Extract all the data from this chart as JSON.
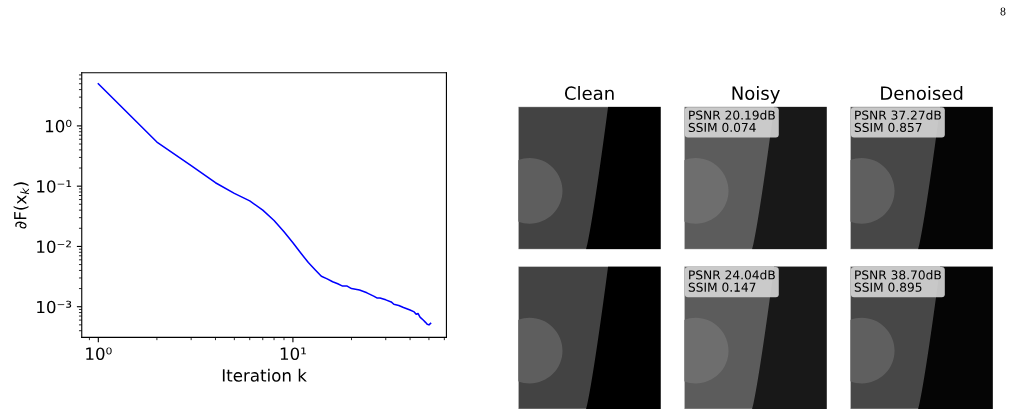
{
  "chart_data": [
    {
      "type": "line",
      "xlabel": "Iteration k",
      "ylabel": "∂F(x$_{k}$)",
      "log": "xy",
      "xlim": [
        0.822,
        61.5
      ],
      "ylim": [
        0.00031,
        7.6
      ],
      "xticks": [
        {
          "value": 1,
          "label": "10⁰"
        },
        {
          "value": 10,
          "label": "10¹"
        }
      ],
      "yticks": [
        {
          "value": 0.001,
          "label": "10⁻³"
        },
        {
          "value": 0.01,
          "label": "10⁻²"
        },
        {
          "value": 0.1,
          "label": "10⁻¹"
        },
        {
          "value": 1,
          "label": "10⁰"
        }
      ],
      "annotations": [
        "8"
      ],
      "series": [
        {
          "color": "#0000ff",
          "x": [
            1,
            2,
            3,
            4,
            5,
            6,
            7,
            8,
            9,
            10,
            11,
            12,
            13,
            14,
            15,
            16,
            17,
            18,
            19,
            20,
            22,
            24,
            26,
            27,
            28,
            30,
            32,
            33,
            35,
            37,
            40,
            42,
            43,
            44,
            45,
            46,
            47,
            48,
            49,
            50,
            51
          ],
          "values": [
            5.0,
            0.54,
            0.22,
            0.114,
            0.076,
            0.057,
            0.04,
            0.027,
            0.0175,
            0.0115,
            0.0077,
            0.0054,
            0.0041,
            0.0032,
            0.0029,
            0.0026,
            0.0024,
            0.0022,
            0.0022,
            0.002,
            0.0019,
            0.0017,
            0.0015,
            0.0014,
            0.0014,
            0.0013,
            0.0012,
            0.0011,
            0.00105,
            0.00097,
            0.00088,
            0.00082,
            0.00075,
            0.00077,
            0.00067,
            0.00063,
            0.00059,
            0.00055,
            0.00051,
            0.0005,
            0.00053
          ]
        }
      ]
    },
    {
      "type": "other",
      "categories": [
        "Clean",
        "Noisy",
        "Denoised"
      ],
      "annotations": [
        "PSNR 20.19dB\nSSIM 0.074",
        "PSNR 37.27dB\nSSIM 0.857",
        "PSNR 24.04dB\nSSIM 0.147",
        "PSNR 38.70dB\nSSIM 0.895"
      ]
    }
  ]
}
